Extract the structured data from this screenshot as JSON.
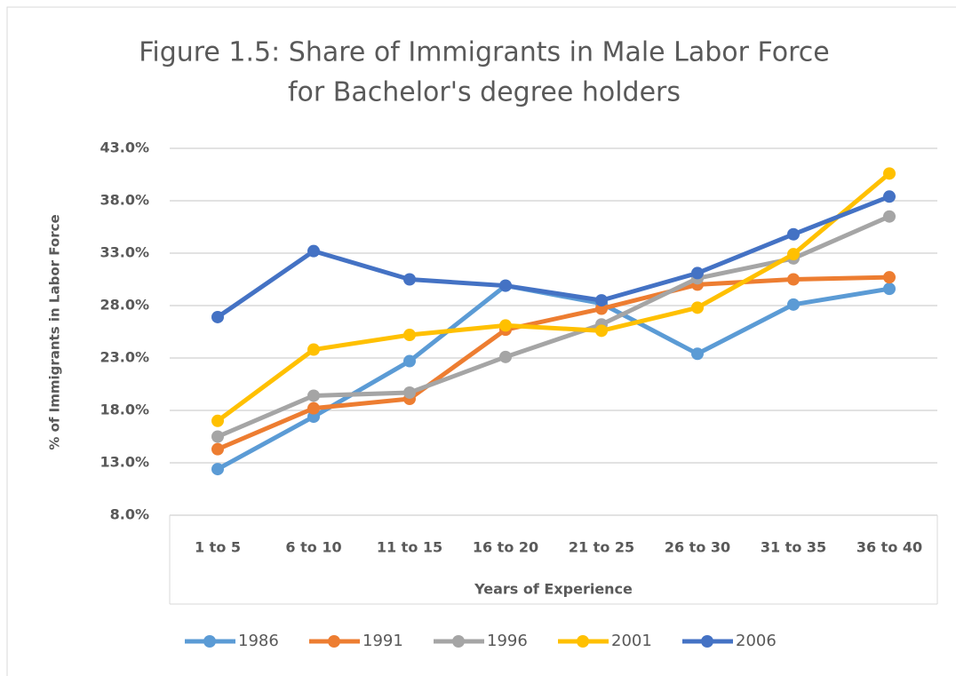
{
  "chart_data": {
    "type": "line",
    "title": [
      "Figure 1.5: Share of Immigrants in Male Labor Force",
      "for Bachelor's degree holders"
    ],
    "x_label": "Years of Experience",
    "y_label": "% of Immigrants in Labor Force",
    "categories": [
      "1 to 5",
      "6 to 10",
      "11 to 15",
      "16 to 20",
      "21 to 25",
      "26 to 30",
      "31 to 35",
      "36 to 40"
    ],
    "series": [
      {
        "name": "1986",
        "color": "#5b9bd5",
        "values": [
          12.4,
          17.4,
          22.7,
          29.9,
          28.2,
          23.4,
          28.1,
          29.6
        ]
      },
      {
        "name": "1991",
        "color": "#ed7d31",
        "values": [
          14.3,
          18.2,
          19.1,
          25.7,
          27.7,
          30.0,
          30.5,
          30.7
        ]
      },
      {
        "name": "1996",
        "color": "#a5a5a5",
        "values": [
          15.5,
          19.4,
          19.7,
          23.1,
          26.2,
          30.6,
          32.5,
          36.5
        ]
      },
      {
        "name": "2001",
        "color": "#ffc000",
        "values": [
          17.0,
          23.8,
          25.2,
          26.1,
          25.6,
          27.8,
          32.9,
          40.6
        ]
      },
      {
        "name": "2006",
        "color": "#4472c4",
        "values": [
          26.9,
          33.2,
          30.5,
          29.9,
          28.5,
          31.1,
          34.8,
          38.4
        ]
      }
    ],
    "ylim": [
      8,
      43
    ],
    "yticks": [
      {
        "value": 8,
        "label": "8.0%"
      },
      {
        "value": 13,
        "label": "13.0%"
      },
      {
        "value": 18,
        "label": "18.0%"
      },
      {
        "value": 23,
        "label": "23.0%"
      },
      {
        "value": 28,
        "label": "28.0%"
      },
      {
        "value": 33,
        "label": "33.0%"
      },
      {
        "value": 38,
        "label": "38.0%"
      },
      {
        "value": 43,
        "label": "43.0%"
      }
    ],
    "grid": true,
    "legend": "bottom"
  }
}
